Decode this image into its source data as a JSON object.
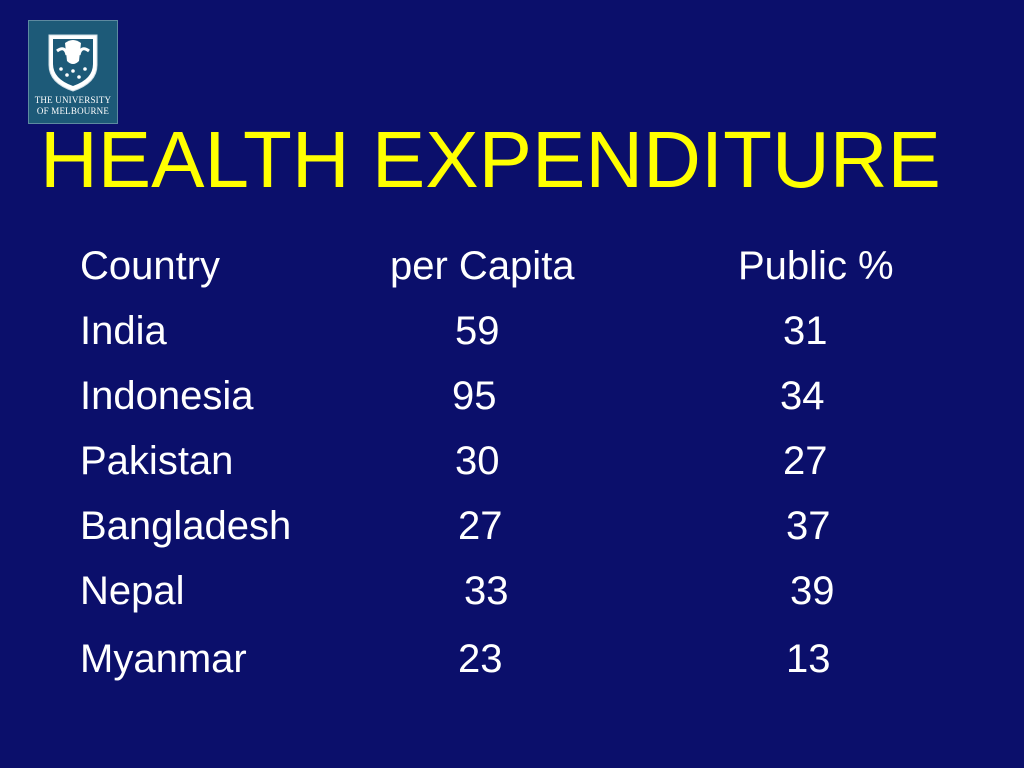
{
  "header": {
    "title": "HEALTH EXPENDITURE",
    "logo": [
      "THE UNIVERSITY",
      "OF MELBOURNE"
    ]
  },
  "table": {
    "columns": [
      "Country",
      "per Capita",
      "Public %"
    ],
    "rows": [
      [
        "India",
        59,
        31
      ],
      [
        "Indonesia",
        95,
        34
      ],
      [
        "Pakistan",
        30,
        27
      ],
      [
        "Bangladesh",
        27,
        37
      ],
      [
        "Nepal",
        33,
        39
      ],
      [
        "Myanmar",
        23,
        13
      ]
    ]
  }
}
